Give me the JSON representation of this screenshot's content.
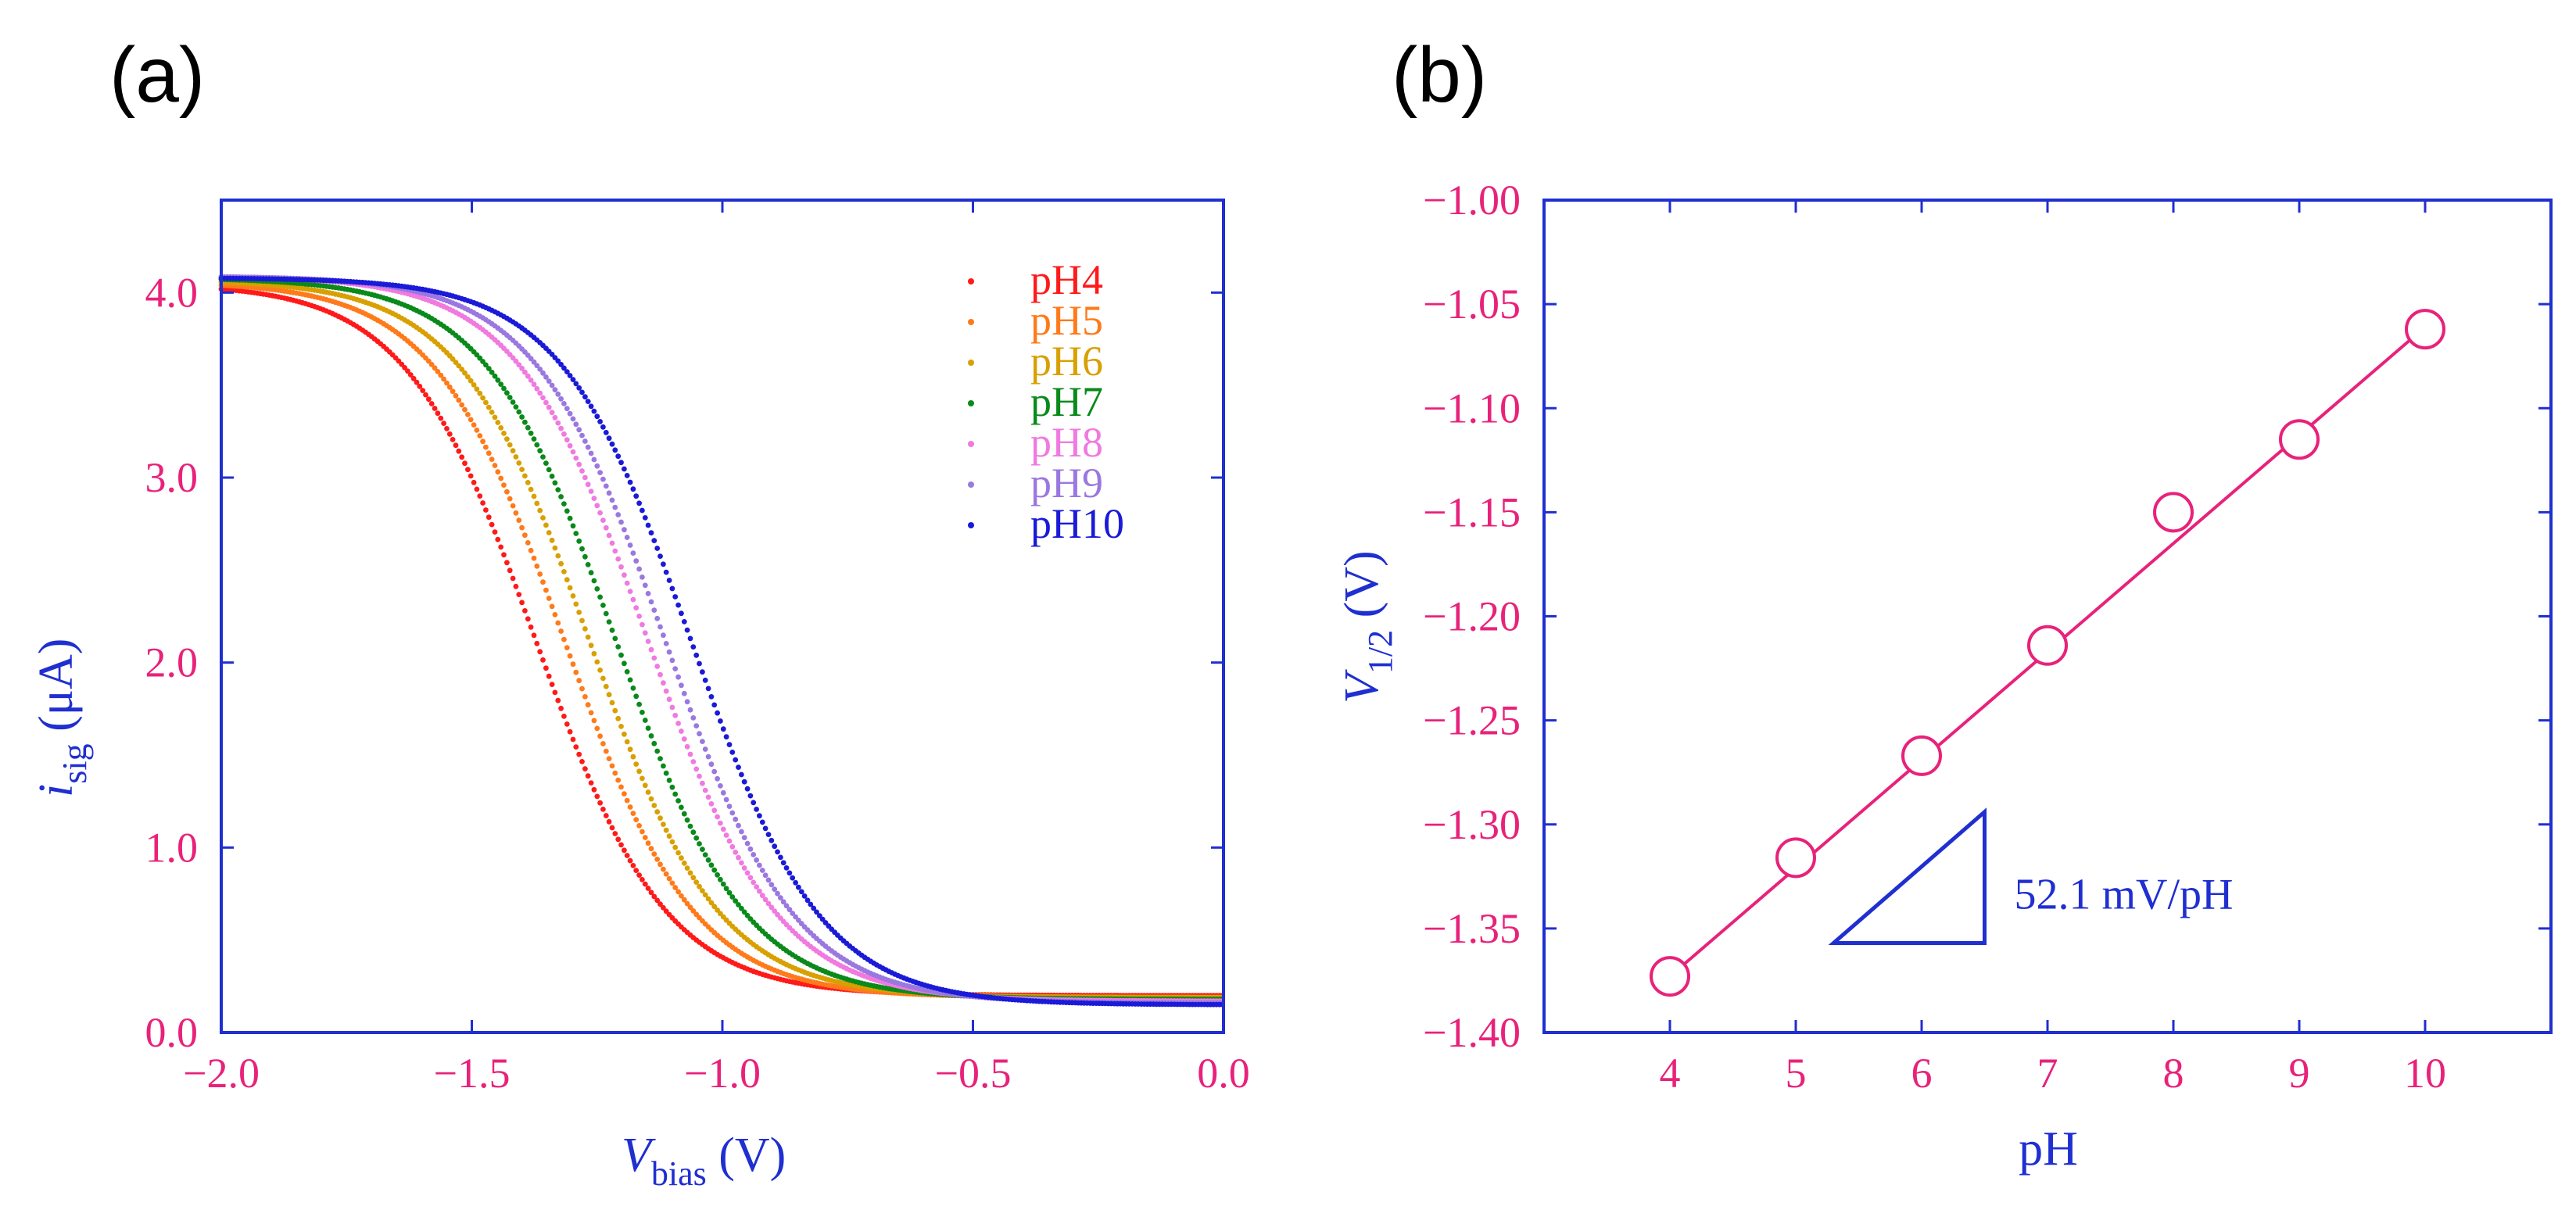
{
  "colors": {
    "axis": "#1f2fd0",
    "tick_label": "#e8227a",
    "fit_line": "#e8227a",
    "series": [
      "#ff1a1a",
      "#ff7a1a",
      "#d8a000",
      "#0a8a1a",
      "#f07ae0",
      "#9a78e0",
      "#1a1ad8"
    ]
  },
  "chart_data": [
    {
      "panel_label": "(a)",
      "type": "scatter",
      "xlabel": {
        "main": "V",
        "sub": "bias",
        "unit": " (V)"
      },
      "ylabel": {
        "main": "i",
        "sub": "sig",
        "unit": " (μA)"
      },
      "xlim": [
        -2.0,
        0.0
      ],
      "ylim": [
        0.0,
        4.5
      ],
      "xticks": [
        -2.0,
        -1.5,
        -1.0,
        -0.5,
        0.0
      ],
      "xtick_labels": [
        "−2.0",
        "−1.5",
        "−1.0",
        "−0.5",
        "0.0"
      ],
      "yticks": [
        0.0,
        1.0,
        2.0,
        3.0,
        4.0
      ],
      "ytick_labels": [
        "0.0",
        "1.0",
        "2.0",
        "3.0",
        "4.0"
      ],
      "legend_position": "top-right",
      "series": [
        {
          "name": "pH4",
          "half_potential": -1.373,
          "i_max": 4.05,
          "i_min": 0.2
        },
        {
          "name": "pH5",
          "half_potential": -1.316,
          "i_max": 4.06,
          "i_min": 0.19
        },
        {
          "name": "pH6",
          "half_potential": -1.267,
          "i_max": 4.07,
          "i_min": 0.19
        },
        {
          "name": "pH7",
          "half_potential": -1.214,
          "i_max": 4.08,
          "i_min": 0.18
        },
        {
          "name": "pH8",
          "half_potential": -1.15,
          "i_max": 4.09,
          "i_min": 0.17
        },
        {
          "name": "pH9",
          "half_potential": -1.115,
          "i_max": 4.09,
          "i_min": 0.16
        },
        {
          "name": "pH10",
          "half_potential": -1.062,
          "i_max": 4.08,
          "i_min": 0.15
        }
      ]
    },
    {
      "panel_label": "(b)",
      "type": "line",
      "xlabel": "pH",
      "ylabel": {
        "main": "V",
        "sub": "1/2",
        "unit": " (V)"
      },
      "xlim": [
        3,
        11
      ],
      "ylim": [
        -1.4,
        -1.0
      ],
      "xticks": [
        4,
        5,
        6,
        7,
        8,
        9,
        10
      ],
      "xtick_labels": [
        "4",
        "5",
        "6",
        "7",
        "8",
        "9",
        "10"
      ],
      "yticks": [
        -1.4,
        -1.35,
        -1.3,
        -1.25,
        -1.2,
        -1.15,
        -1.1,
        -1.05,
        -1.0
      ],
      "ytick_labels": [
        "−1.40",
        "−1.35",
        "−1.30",
        "−1.25",
        "−1.20",
        "−1.15",
        "−1.10",
        "−1.05",
        "−1.00"
      ],
      "x": [
        4,
        5,
        6,
        7,
        8,
        9,
        10
      ],
      "y": [
        -1.373,
        -1.316,
        -1.267,
        -1.214,
        -1.15,
        -1.115,
        -1.062
      ],
      "fit_line": {
        "x": [
          4,
          10
        ],
        "y": [
          -1.373,
          -1.061
        ]
      },
      "slope_triangle": {
        "x": [
          5.3,
          6.5
        ],
        "y": [
          -1.357,
          -1.294
        ]
      },
      "annotation": "52.1 mV/pH"
    }
  ]
}
